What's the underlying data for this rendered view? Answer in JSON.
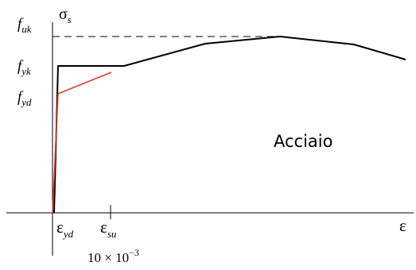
{
  "labels": {
    "f_uk": {
      "base": "f",
      "sub": "uk"
    },
    "f_yk": {
      "base": "f",
      "sub": "yk"
    },
    "f_yd": {
      "base": "f",
      "sub": "yd"
    },
    "sigma": {
      "base": "σ",
      "sub": "s"
    },
    "eps_yd": {
      "base": "ε",
      "sub": "yd"
    },
    "eps_su": {
      "base": "ε",
      "sub": "su"
    },
    "eps_axis": "ε",
    "material": "Acciaio",
    "strain_value": {
      "mantissa": "10 × 10",
      "exponent": "−3"
    }
  },
  "colors": {
    "characteristic": "#000000",
    "design": "#e0402a",
    "axes": "#000000",
    "reference": "#000000"
  }
}
